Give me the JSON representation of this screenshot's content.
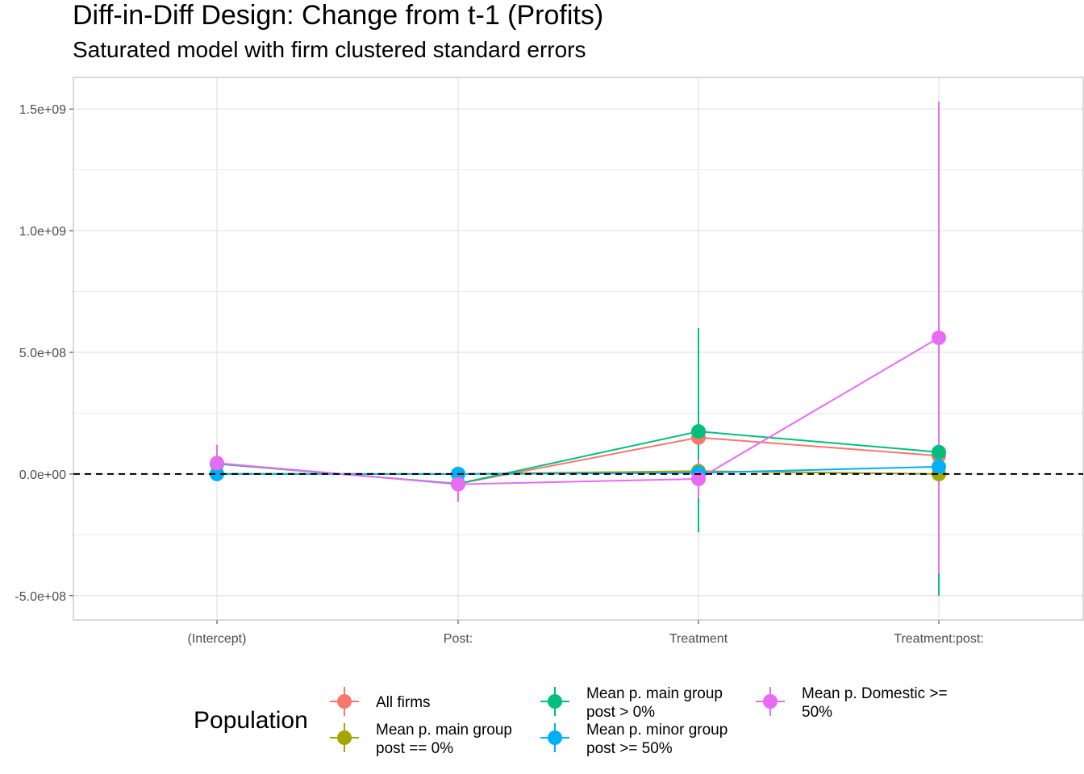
{
  "title": "Diff-in-Diff Design: Change from t-1 (Profits)",
  "subtitle": "Saturated model with firm clustered standard errors",
  "chart_data": {
    "type": "line",
    "title": "Diff-in-Diff Design: Change from t-1 (Profits)",
    "subtitle": "Saturated model with firm clustered standard errors",
    "xlabel": "",
    "ylabel": "",
    "categories": [
      "(Intercept)",
      "Post:",
      "Treatment",
      "Treatment:post:"
    ],
    "y_ticks": [
      -500000000,
      0,
      500000000,
      1000000000,
      1500000000
    ],
    "y_tick_labels": [
      "-5.0e+08",
      "0.0e+00",
      "5.0e+08",
      "1.0e+09",
      "1.5e+09"
    ],
    "ylim": [
      -600000000,
      1630000000
    ],
    "grid": true,
    "reference_line": {
      "y": 0,
      "style": "dashed",
      "color": "#000000"
    },
    "legend": {
      "title": "Population",
      "placement": "bottom"
    },
    "series": [
      {
        "name": "All firms",
        "color": "#F8766D",
        "values": [
          42000000,
          -40000000,
          150000000,
          75000000
        ],
        "lower": [
          30000000,
          -50000000,
          120000000,
          40000000
        ],
        "upper": [
          55000000,
          -30000000,
          180000000,
          110000000
        ]
      },
      {
        "name": "Mean p. main group\npost == 0%",
        "color": "#A3A500",
        "values": [
          1000000,
          0,
          12000000,
          0
        ],
        "lower": [
          -4000000,
          -4000000,
          4000000,
          -8000000
        ],
        "upper": [
          6000000,
          4000000,
          20000000,
          8000000
        ]
      },
      {
        "name": "Mean p. main group\npost > 0%",
        "color": "#00BF7D",
        "values": [
          42000000,
          -40000000,
          175000000,
          90000000
        ],
        "lower": [
          30000000,
          -50000000,
          -240000000,
          -500000000
        ],
        "upper": [
          55000000,
          -30000000,
          600000000,
          680000000
        ]
      },
      {
        "name": "Mean p. minor group\npost >= 50%",
        "color": "#00B0F6",
        "values": [
          0,
          0,
          5000000,
          30000000
        ],
        "lower": [
          -5000000,
          -5000000,
          -3000000,
          10000000
        ],
        "upper": [
          5000000,
          5000000,
          13000000,
          50000000
        ]
      },
      {
        "name": "Mean p. Domestic >=\n50%",
        "color": "#E76BF3",
        "values": [
          45000000,
          -42000000,
          -20000000,
          560000000
        ],
        "lower": [
          -20000000,
          -115000000,
          -100000000,
          -410000000
        ],
        "upper": [
          120000000,
          30000000,
          60000000,
          1530000000
        ]
      }
    ]
  }
}
